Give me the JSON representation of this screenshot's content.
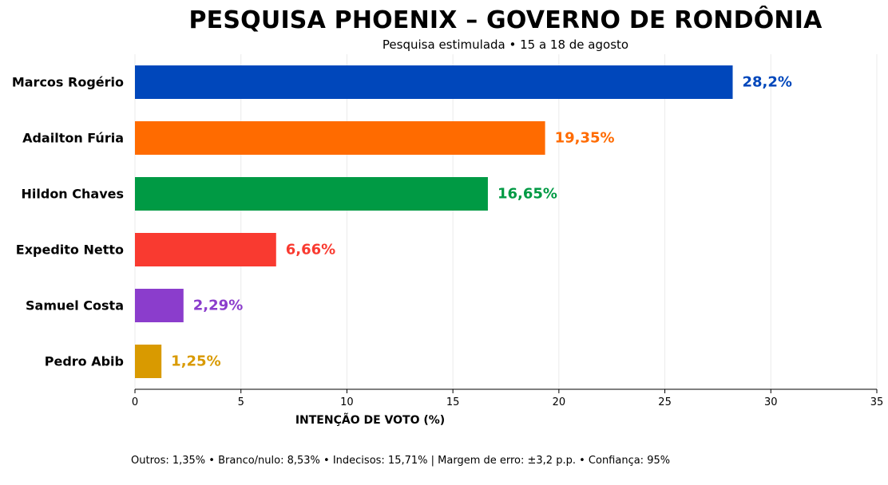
{
  "chart_data": {
    "type": "bar",
    "orientation": "horizontal",
    "title": "PESQUISA PHOENIX – GOVERNO DE RONDÔNIA",
    "subtitle": "Pesquisa estimulada • 15 a 18 de agosto",
    "xlabel": "INTENÇÃO DE VOTO (%)",
    "ylabel": "",
    "xlim": [
      0,
      35
    ],
    "xticks": [
      "0",
      "5",
      "10",
      "15",
      "20",
      "25",
      "30",
      "35"
    ],
    "xtick_values": [
      0,
      5,
      10,
      15,
      20,
      25,
      30,
      35
    ],
    "grid": "vertical",
    "categories": [
      "Marcos Rogério",
      "Adailton Fúria",
      "Hildon Chaves",
      "Expedito Netto",
      "Samuel Costa",
      "Pedro Abib"
    ],
    "values": [
      28.2,
      19.35,
      16.65,
      6.66,
      2.29,
      1.25
    ],
    "value_labels": [
      "28,2%",
      "19,35%",
      "16,65%",
      "6,66%",
      "2,29%",
      "1,25%"
    ],
    "colors": [
      "#0047BB",
      "#FF6B00",
      "#009A44",
      "#F93A30",
      "#8B3DCC",
      "#D99A00"
    ],
    "footnote": "Outros: 1,35%  •  Branco/nulo: 8,53%  •  Indecisos: 15,71%   |   Margem de erro: ±3,2 p.p.  •  Confiança: 95%"
  }
}
